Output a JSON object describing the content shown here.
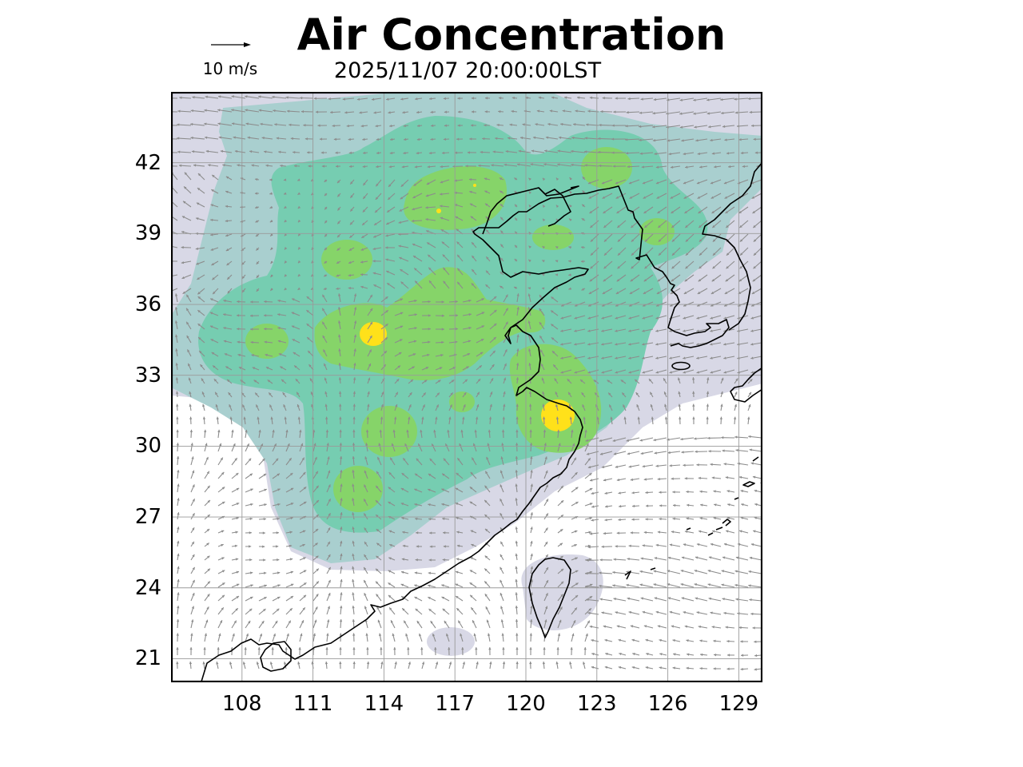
{
  "title": "Air Concentration",
  "subtitle": "2025/11/07 20:00:00LST",
  "wind_scale": {
    "label": "10 m/s",
    "icon": "arrow-right-icon"
  },
  "axes": {
    "lon_ticks": [
      "108",
      "111",
      "114",
      "117",
      "120",
      "123",
      "126",
      "129"
    ],
    "lat_ticks": [
      "42",
      "39",
      "36",
      "33",
      "30",
      "27",
      "24",
      "21"
    ],
    "lon_range": [
      105,
      130
    ],
    "lat_range": [
      20,
      45
    ],
    "grid": true
  },
  "colors": {
    "level_1": "#d8d8e6",
    "level_2": "#a9cfcf",
    "level_3": "#76cdb1",
    "level_4": "#86d469",
    "level_5": "#ffe11a",
    "wind_arrows": "#8c8c8c",
    "coastline": "#000000"
  }
}
